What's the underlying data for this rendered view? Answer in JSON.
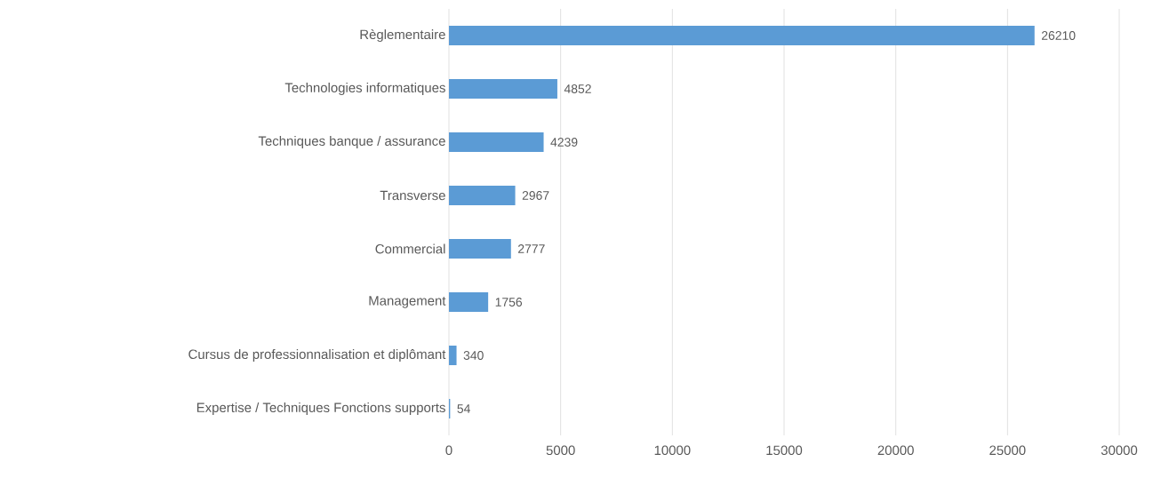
{
  "chart_data": {
    "type": "bar",
    "orientation": "horizontal",
    "categories": [
      "Règlementaire",
      "Technologies informatiques",
      "Techniques banque / assurance",
      "Transverse",
      "Commercial",
      "Management",
      "Cursus de professionnalisation et diplômant",
      "Expertise / Techniques Fonctions supports"
    ],
    "values": [
      26210,
      4852,
      4239,
      2967,
      2777,
      1756,
      340,
      54
    ],
    "color": "#5b9bd5",
    "xlim": [
      0,
      30000
    ],
    "xticks": [
      0,
      5000,
      10000,
      15000,
      20000,
      25000,
      30000
    ],
    "grid": "x",
    "data_labels": true
  }
}
